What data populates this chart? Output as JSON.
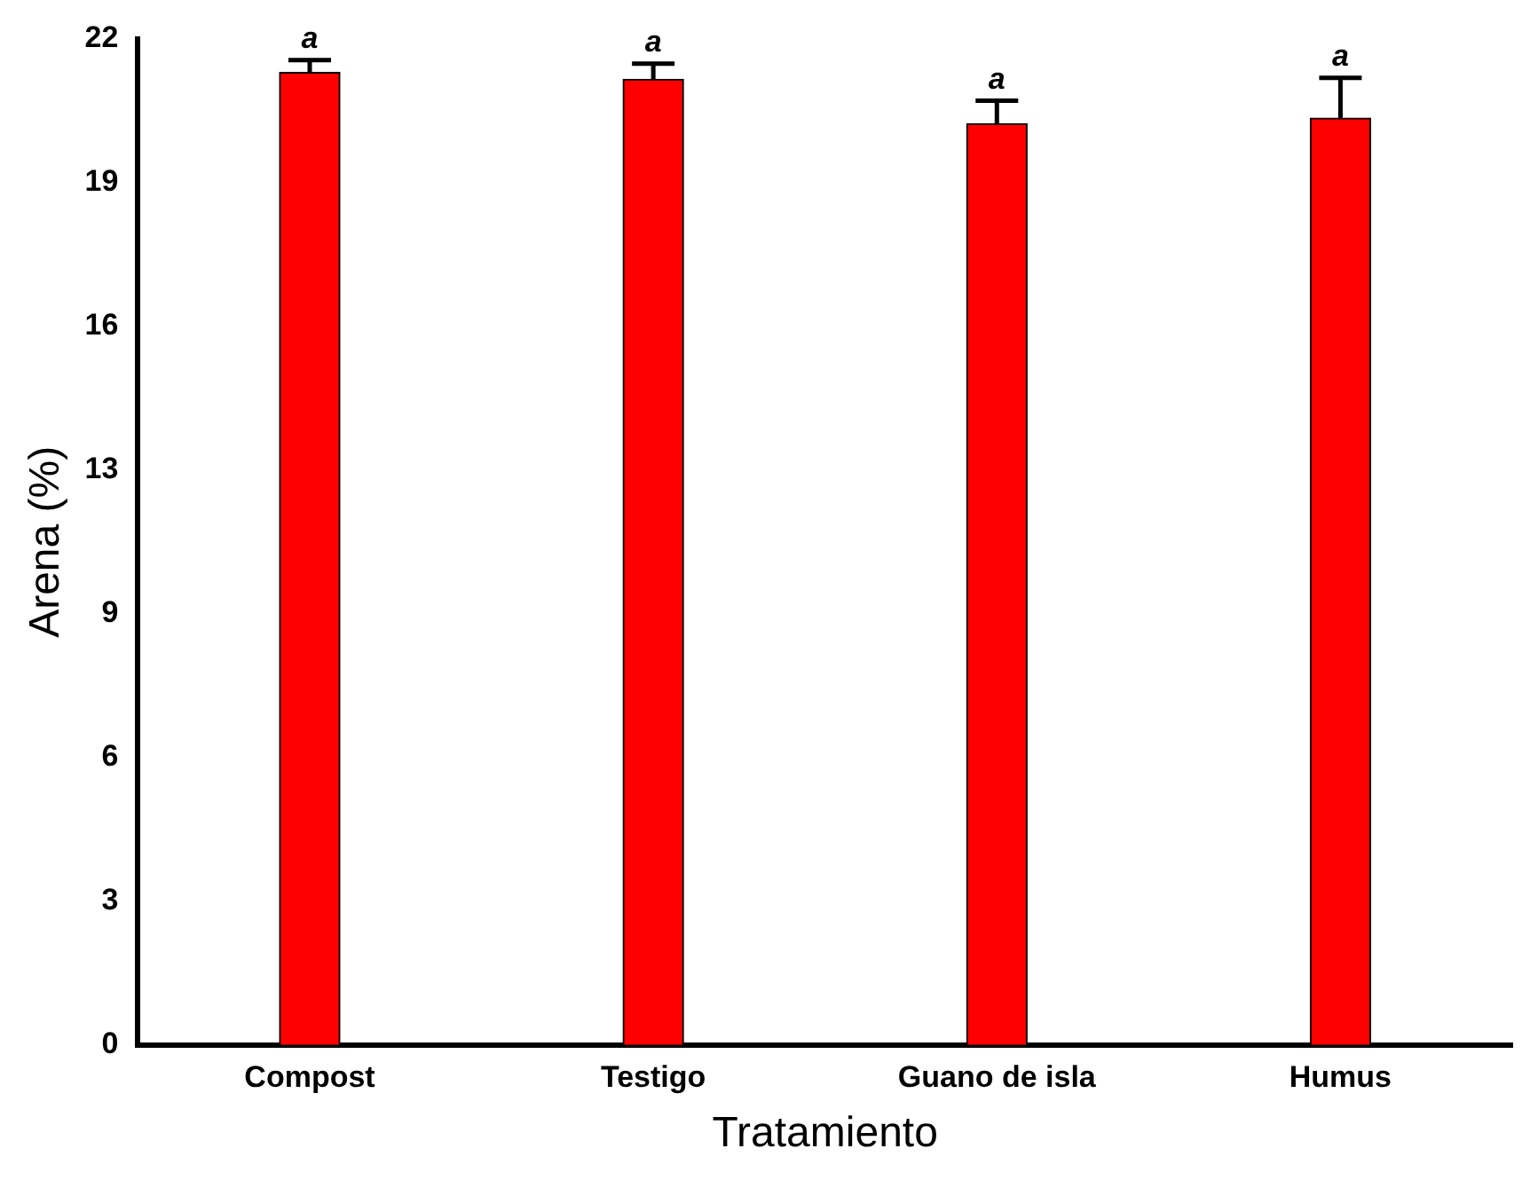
{
  "chart_data": {
    "type": "bar",
    "xlabel": "Tratamiento",
    "ylabel": "Arena (%)",
    "categories": [
      "Compost",
      "Testigo",
      "Guano de isla",
      "Humus"
    ],
    "values": [
      21.27,
      21.12,
      20.15,
      20.27
    ],
    "errors": [
      [
        21.27,
        21.54
      ],
      [
        21.12,
        21.46
      ],
      [
        20.15,
        20.65
      ],
      [
        20.27,
        21.15
      ]
    ],
    "color": "#ff0000",
    "ylim": [
      0,
      22
    ],
    "yticks": [
      0,
      {
        "value": 3.143,
        "label": "3"
      },
      {
        "value": 6.286,
        "label": "6"
      },
      {
        "value": 9.429,
        "label": "9"
      },
      {
        "value": 12.571,
        "label": "13"
      },
      {
        "value": 15.714,
        "label": "16"
      },
      {
        "value": 18.857,
        "label": "19"
      },
      22
    ],
    "annotations": [
      "a",
      "a",
      "a",
      "a"
    ]
  }
}
